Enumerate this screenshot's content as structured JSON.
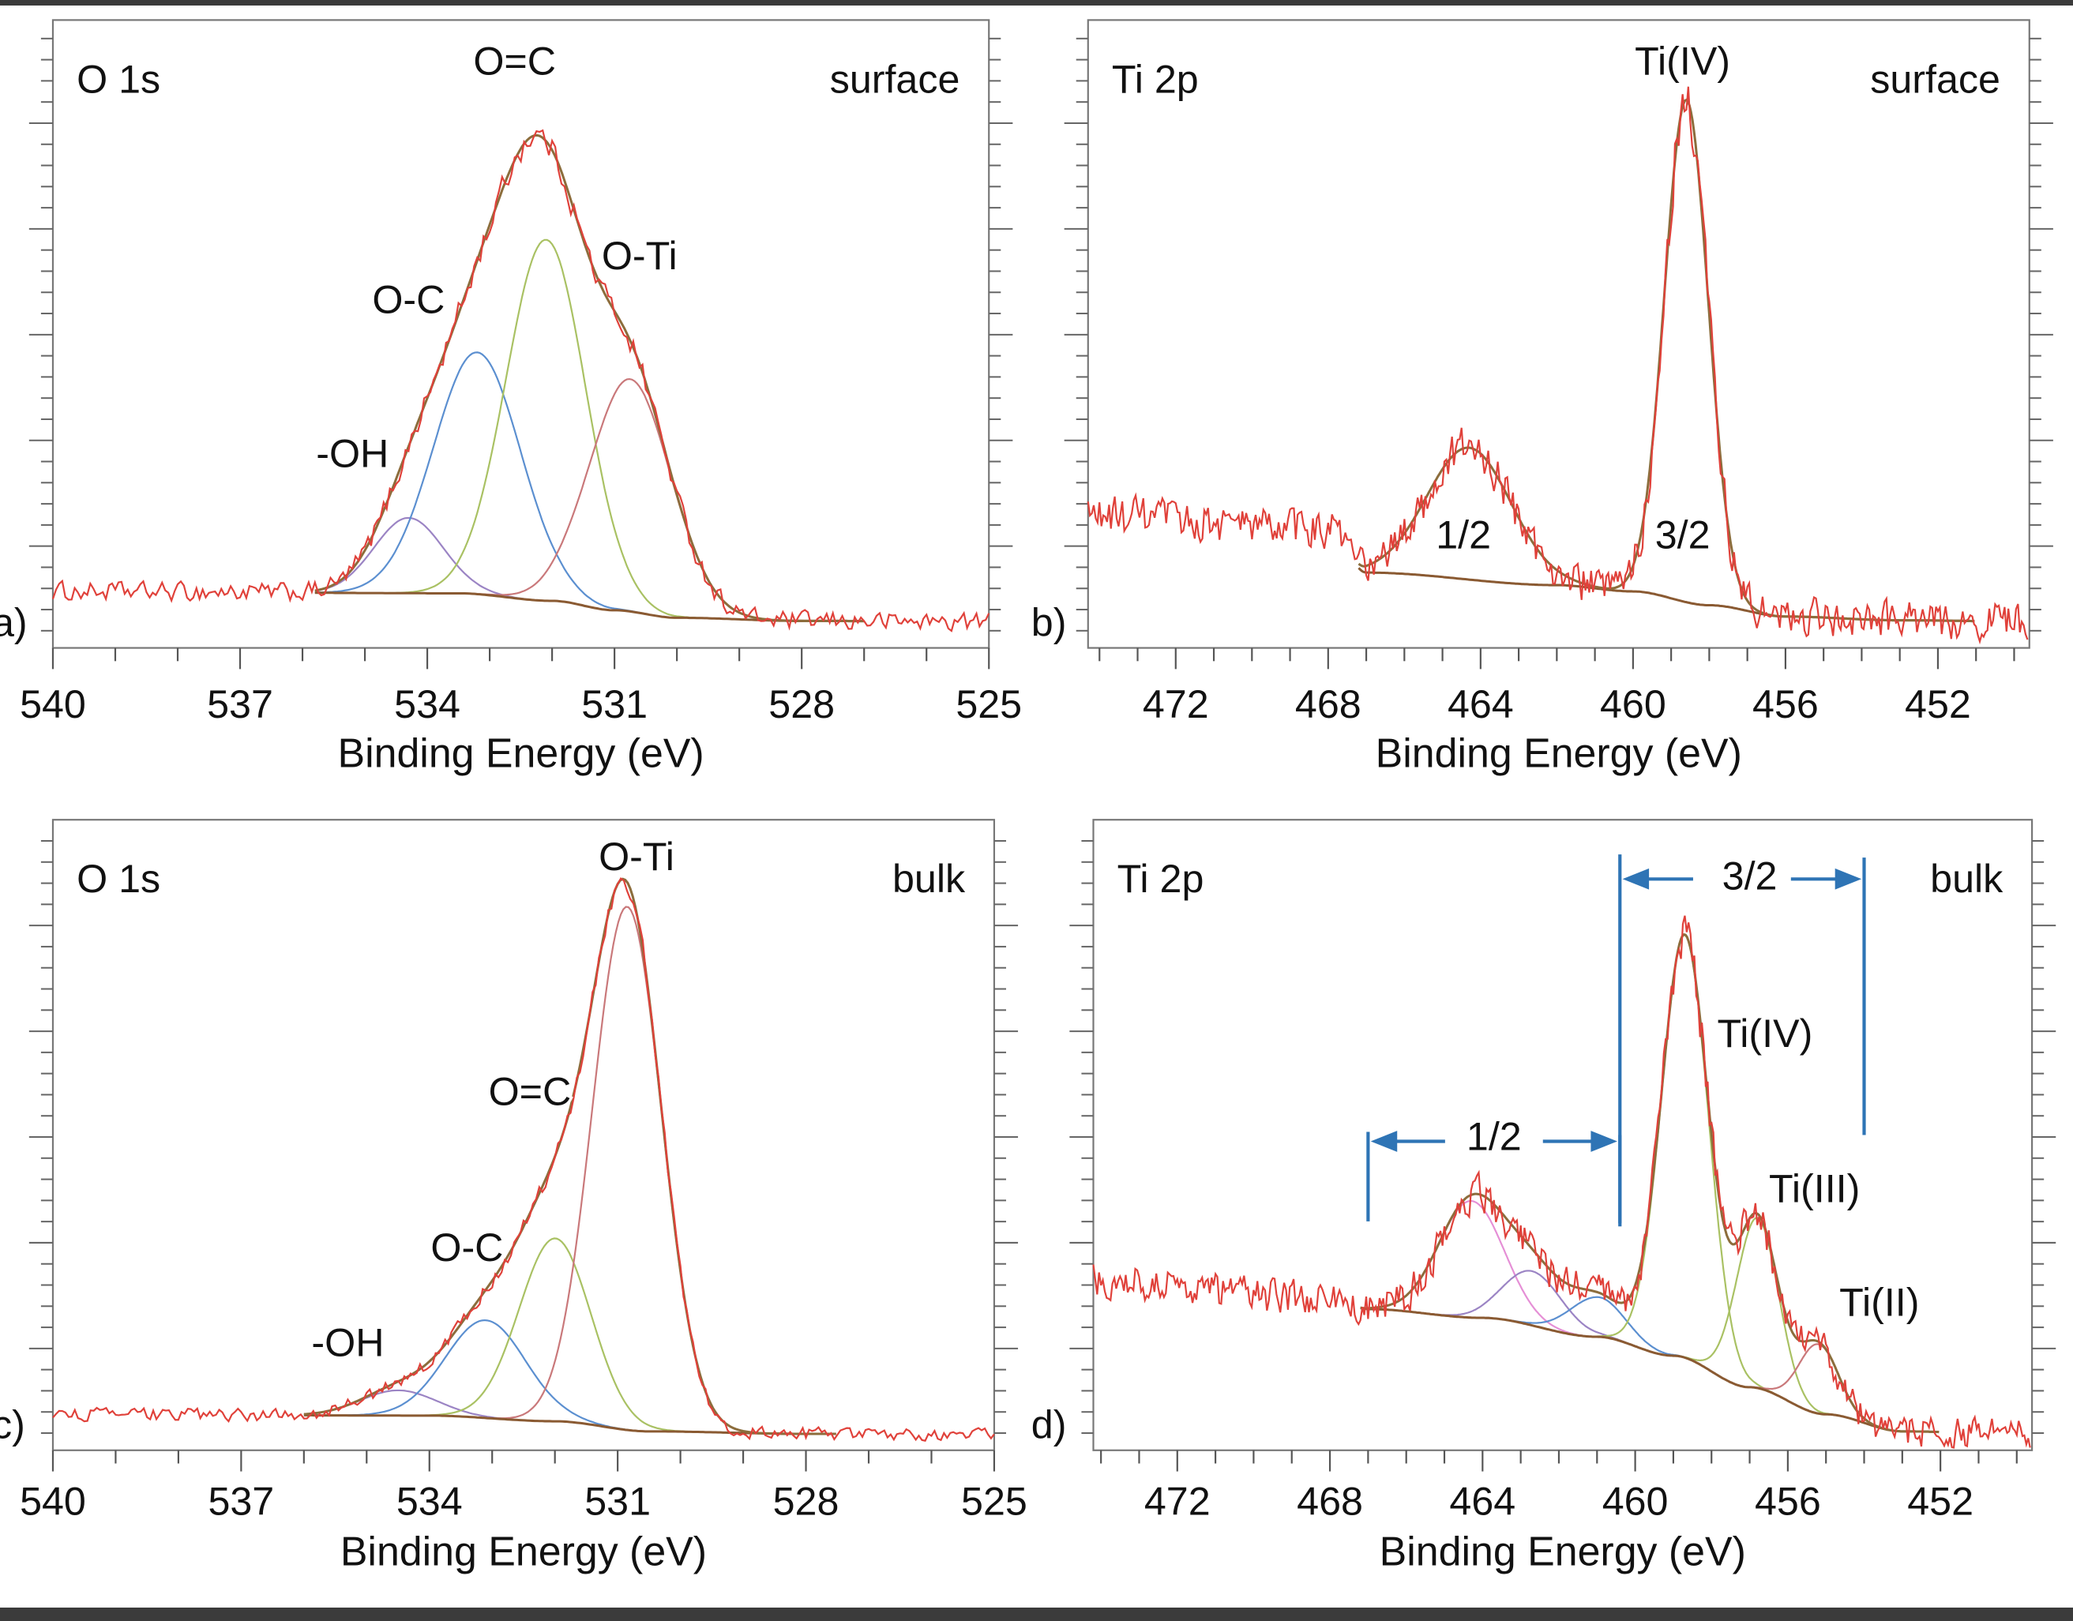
{
  "chart_data": [
    {
      "type": "line",
      "panel_label": "a)",
      "title": "O 1s",
      "condition": "surface",
      "xlabel": "Binding Energy (eV)",
      "ylabel": "",
      "xlim": [
        540,
        525
      ],
      "xticks": [
        "540",
        "537",
        "534",
        "531",
        "528",
        "525"
      ],
      "ylim": [
        0,
        1
      ],
      "fit_range": [
        535.8,
        527.0
      ],
      "noise_amplitude": 0.018,
      "background": [
        [
          540,
          0.09
        ],
        [
          533.5,
          0.087
        ],
        [
          532,
          0.075
        ],
        [
          531,
          0.06
        ],
        [
          530,
          0.048
        ],
        [
          528,
          0.043
        ],
        [
          525,
          0.042
        ]
      ],
      "components": [
        {
          "label": "-OH",
          "center": 534.3,
          "height": 0.12,
          "fwhm": 1.3,
          "color": "#9b84c4"
        },
        {
          "label": "O-C",
          "center": 533.2,
          "height": 0.385,
          "fwhm": 1.65,
          "color": "#5b8fd0"
        },
        {
          "label": "O=C",
          "center": 532.1,
          "height": 0.575,
          "fwhm": 1.5,
          "color": "#a9c163"
        },
        {
          "label": "O-Ti",
          "center": 530.75,
          "height": 0.37,
          "fwhm": 1.55,
          "color": "#c9787a"
        }
      ],
      "annotations": [
        {
          "text": "O=C",
          "x": 532.6,
          "y": 0.93
        },
        {
          "text": "O-Ti",
          "x": 530.6,
          "y": 0.62
        },
        {
          "text": "O-C",
          "x": 534.3,
          "y": 0.55
        },
        {
          "text": "-OH",
          "x": 535.2,
          "y": 0.305
        }
      ],
      "brackets": []
    },
    {
      "type": "line",
      "panel_label": "b)",
      "title": "Ti 2p",
      "condition": "surface",
      "xlabel": "Binding Energy (eV)",
      "ylabel": "",
      "xlim": [
        474.3,
        449.6
      ],
      "xticks": [
        "472",
        "468",
        "464",
        "460",
        "456",
        "452"
      ],
      "ylim": [
        0,
        1
      ],
      "fit_range": [
        467.2,
        451.0
      ],
      "noise_amplitude": 0.035,
      "background": [
        [
          474.3,
          0.21
        ],
        [
          468,
          0.19
        ],
        [
          467,
          0.12
        ],
        [
          462,
          0.1
        ],
        [
          460,
          0.09
        ],
        [
          458,
          0.068
        ],
        [
          456,
          0.05
        ],
        [
          453,
          0.044
        ],
        [
          449.6,
          0.042
        ]
      ],
      "components": [
        {
          "label": "1/2",
          "center": 464.3,
          "height": 0.21,
          "fwhm": 2.6,
          "color": "#a9c163"
        },
        {
          "label": "3/2",
          "center": 458.6,
          "height": 0.8,
          "fwhm": 1.35,
          "color": "#a9c163"
        }
      ],
      "annotations": [
        {
          "text": "Ti(IV)",
          "x": 458.7,
          "y": 0.93
        },
        {
          "text": "1/2",
          "x": 464.45,
          "y": 0.175
        },
        {
          "text": "3/2",
          "x": 458.7,
          "y": 0.175
        }
      ],
      "brackets": []
    },
    {
      "type": "line",
      "panel_label": "c)",
      "title": "O 1s",
      "condition": "bulk",
      "xlabel": "Binding Energy (eV)",
      "ylabel": "",
      "xlim": [
        540,
        525
      ],
      "xticks": [
        "540",
        "537",
        "534",
        "531",
        "528",
        "525"
      ],
      "ylim": [
        0,
        1
      ],
      "fit_range": [
        536.0,
        527.5
      ],
      "noise_amplitude": 0.012,
      "background": [
        [
          540,
          0.057
        ],
        [
          534,
          0.055
        ],
        [
          532,
          0.046
        ],
        [
          530.5,
          0.03
        ],
        [
          528,
          0.026
        ],
        [
          525,
          0.025
        ]
      ],
      "components": [
        {
          "label": "-OH",
          "center": 534.5,
          "height": 0.04,
          "fwhm": 1.4,
          "color": "#9b84c4"
        },
        {
          "label": "O-C",
          "center": 533.1,
          "height": 0.155,
          "fwhm": 1.5,
          "color": "#5b8fd0"
        },
        {
          "label": "O=C",
          "center": 532.0,
          "height": 0.29,
          "fwhm": 1.35,
          "color": "#a9c163"
        },
        {
          "label": "O-Ti",
          "center": 530.85,
          "height": 0.83,
          "fwhm": 1.3,
          "color": "#c9787a"
        }
      ],
      "annotations": [
        {
          "text": "O-Ti",
          "x": 530.7,
          "y": 0.937
        },
        {
          "text": "O=C",
          "x": 532.4,
          "y": 0.564
        },
        {
          "text": "O-C",
          "x": 533.4,
          "y": 0.317
        },
        {
          "text": "-OH",
          "x": 535.3,
          "y": 0.166
        }
      ],
      "brackets": []
    },
    {
      "type": "line",
      "panel_label": "d)",
      "title": "Ti 2p",
      "condition": "bulk",
      "xlabel": "Binding Energy (eV)",
      "ylabel": "",
      "xlim": [
        474.2,
        449.6
      ],
      "xticks": [
        "472",
        "468",
        "464",
        "460",
        "456",
        "452"
      ],
      "ylim": [
        0,
        1
      ],
      "fit_range": [
        467.2,
        452.0
      ],
      "noise_amplitude": 0.03,
      "background": [
        [
          474.2,
          0.27
        ],
        [
          468,
          0.24
        ],
        [
          467,
          0.224
        ],
        [
          464,
          0.21
        ],
        [
          461,
          0.18
        ],
        [
          459,
          0.15
        ],
        [
          457,
          0.1
        ],
        [
          455,
          0.057
        ],
        [
          453,
          0.03
        ],
        [
          449.6,
          0.025
        ]
      ],
      "components": [
        {
          "label": "Ti(IV) 1/2",
          "center": 464.3,
          "height": 0.185,
          "fwhm": 2.0,
          "color": "#e58fd6"
        },
        {
          "label": "Ti(III) 1/2",
          "center": 462.7,
          "height": 0.086,
          "fwhm": 1.8,
          "color": "#9b84c4"
        },
        {
          "label": "Ti(II) 1/2",
          "center": 461.0,
          "height": 0.063,
          "fwhm": 1.7,
          "color": "#5b8fd0"
        },
        {
          "label": "Ti(IV)",
          "center": 458.7,
          "height": 0.67,
          "fwhm": 1.45,
          "color": "#a9c163"
        },
        {
          "label": "Ti(III)",
          "center": 456.8,
          "height": 0.27,
          "fwhm": 1.3,
          "color": "#a9c163"
        },
        {
          "label": "Ti(II)",
          "center": 455.2,
          "height": 0.11,
          "fwhm": 1.2,
          "color": "#c9787a"
        }
      ],
      "annotations": [
        {
          "text": "3/2",
          "x": 457.0,
          "y": 0.906
        },
        {
          "text": "Ti(IV)",
          "x": 456.6,
          "y": 0.656
        },
        {
          "text": "1/2",
          "x": 463.7,
          "y": 0.493
        },
        {
          "text": "Ti(III)",
          "x": 455.3,
          "y": 0.41
        },
        {
          "text": "Ti(II)",
          "x": 453.6,
          "y": 0.23
        }
      ],
      "brackets": [
        {
          "label": "3/2",
          "from": 460.4,
          "to": 454.0,
          "y": 0.906,
          "left_top": 0.945,
          "left_bottom": 0.355,
          "right_top": 0.94,
          "right_bottom": 0.5
        },
        {
          "label": "1/2",
          "from": 467.0,
          "to": 460.4,
          "y": 0.49,
          "left_top": 0.505,
          "left_bottom": 0.363,
          "right_top": 0.5,
          "right_bottom": 0.36
        }
      ]
    }
  ],
  "colors": {
    "data": "#e0413a",
    "envelope": "#8c6d3c",
    "background_line": "#8a5a32",
    "bracket": "#2e74b5"
  }
}
